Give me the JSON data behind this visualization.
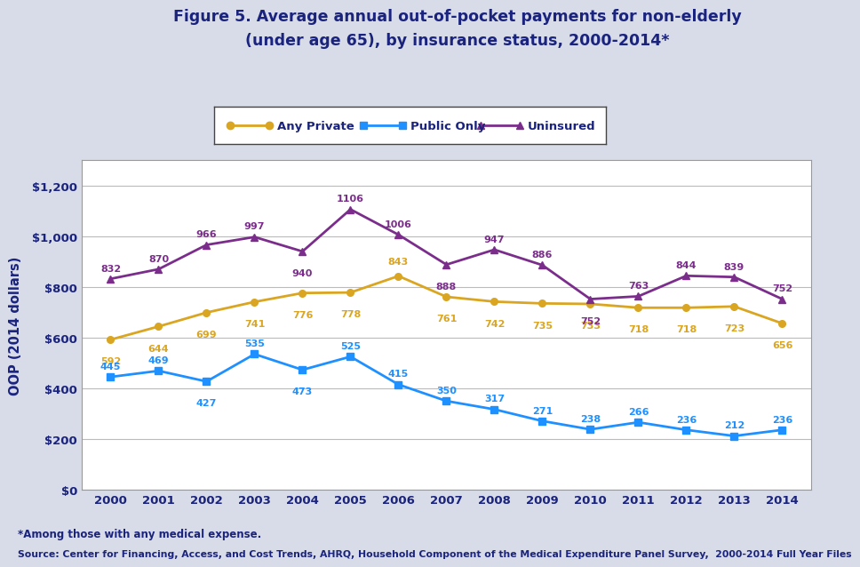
{
  "years": [
    2000,
    2001,
    2002,
    2003,
    2004,
    2005,
    2006,
    2007,
    2008,
    2009,
    2010,
    2011,
    2012,
    2013,
    2014
  ],
  "any_private": [
    592,
    644,
    699,
    741,
    776,
    778,
    843,
    761,
    742,
    735,
    733,
    718,
    718,
    723,
    656
  ],
  "public_only": [
    445,
    469,
    427,
    535,
    473,
    525,
    415,
    350,
    317,
    271,
    238,
    266,
    236,
    212,
    236
  ],
  "uninsured": [
    832,
    870,
    966,
    997,
    940,
    1106,
    1006,
    888,
    947,
    886,
    752,
    763,
    844,
    839,
    752
  ],
  "any_private_color": "#DAA520",
  "public_only_color": "#1E90FF",
  "uninsured_color": "#7B2D8B",
  "title_line1": "Figure 5. Average annual out-of-pocket payments for non-elderly",
  "title_line2": "(under age 65), by insurance status, 2000-2014*",
  "ylabel": "OOP (2014 dollars)",
  "ylim": [
    0,
    1300
  ],
  "yticks": [
    0,
    200,
    400,
    600,
    800,
    1000,
    1200
  ],
  "ytick_labels": [
    "$0",
    "$200",
    "$400",
    "$600",
    "$800",
    "$1,000",
    "$1,200"
  ],
  "legend_labels": [
    "Any Private",
    "Public Only",
    "Uninsured"
  ],
  "footnote1": "*Among those with any medical expense.",
  "footnote2": "Source: Center for Financing, Access, and Cost Trends, AHRQ, Household Component of the Medical Expenditure Panel Survey,  2000-2014 Full Year Files",
  "bg_color": "#d8dce8",
  "plot_bg_color": "#ffffff",
  "title_color": "#1a237e",
  "axis_label_color": "#1a237e",
  "tick_color": "#1a237e",
  "footnote_color": "#1a237e"
}
